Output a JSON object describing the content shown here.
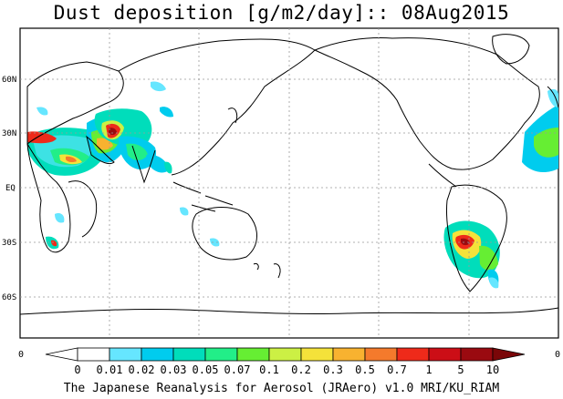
{
  "map": {
    "title": "Dust deposition [g/m2/day]:: 08Aug2015",
    "lat_labels": [
      "60N",
      "30N",
      "EQ",
      "30S",
      "60S"
    ],
    "edge_labels": [
      "0",
      "0"
    ],
    "footer": "The Japanese Reanalysis for Aerosol (JRAero) v1.0 MRI/KU_RIAM"
  },
  "legend": {
    "labels": [
      "0",
      "0.01",
      "0.02",
      "0.03",
      "0.05",
      "0.07",
      "0.1",
      "0.2",
      "0.3",
      "0.5",
      "0.7",
      "1",
      "5",
      "10"
    ],
    "colors": [
      "#ffffff",
      "#ffffff",
      "#66e6ff",
      "#00ccee",
      "#00ddbb",
      "#22ee88",
      "#66ee33",
      "#ccf044",
      "#f4e23a",
      "#f8b230",
      "#f47a2c",
      "#ee2a1a",
      "#cc0e16",
      "#9a0a10",
      "#7a0608"
    ]
  }
}
